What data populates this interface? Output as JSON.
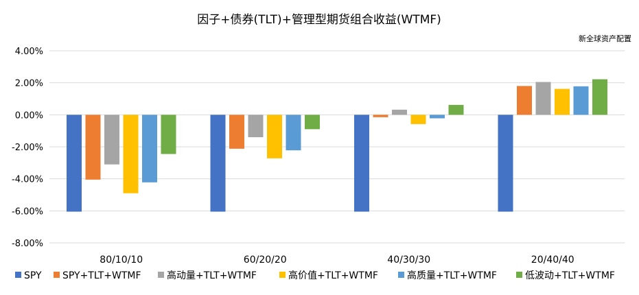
{
  "chart_data": {
    "type": "bar",
    "title": "因子+债券(TLT)+管理型期货组合收益(WTMF)",
    "source_note": "新全球资产配置",
    "xlabel": "",
    "ylabel": "",
    "ylim": [
      -0.08,
      0.04
    ],
    "yticks": [
      0.04,
      0.02,
      0.0,
      -0.02,
      -0.04,
      -0.06,
      -0.08
    ],
    "ytick_labels": [
      "4.00%",
      "2.00%",
      "0.00%",
      "-2.00%",
      "-4.00%",
      "-6.00%",
      "-8.00%"
    ],
    "grid": true,
    "legend_position": "bottom",
    "categories": [
      "80/10/10",
      "60/20/20",
      "40/30/30",
      "20/40/40"
    ],
    "series": [
      {
        "name": "SPY",
        "color": "#4472C4",
        "values": [
          -0.0605,
          -0.0605,
          -0.0605,
          -0.0605
        ]
      },
      {
        "name": "SPY+TLT+WTMF",
        "color": "#ED7D31",
        "values": [
          -0.0405,
          -0.0212,
          -0.0015,
          0.018
        ]
      },
      {
        "name": "高动量+TLT+WTMF",
        "color": "#A5A5A5",
        "values": [
          -0.031,
          -0.014,
          0.0032,
          0.0205
        ]
      },
      {
        "name": "高价值+TLT+WTMF",
        "color": "#FFC000",
        "values": [
          -0.049,
          -0.0272,
          -0.0058,
          0.0162
        ]
      },
      {
        "name": "高质量+TLT+WTMF",
        "color": "#5B9BD5",
        "values": [
          -0.0422,
          -0.0222,
          -0.0022,
          0.0178
        ]
      },
      {
        "name": "低波动+TLT+WTMF",
        "color": "#70AD47",
        "values": [
          -0.0245,
          -0.009,
          0.0062,
          0.0222
        ]
      }
    ]
  }
}
